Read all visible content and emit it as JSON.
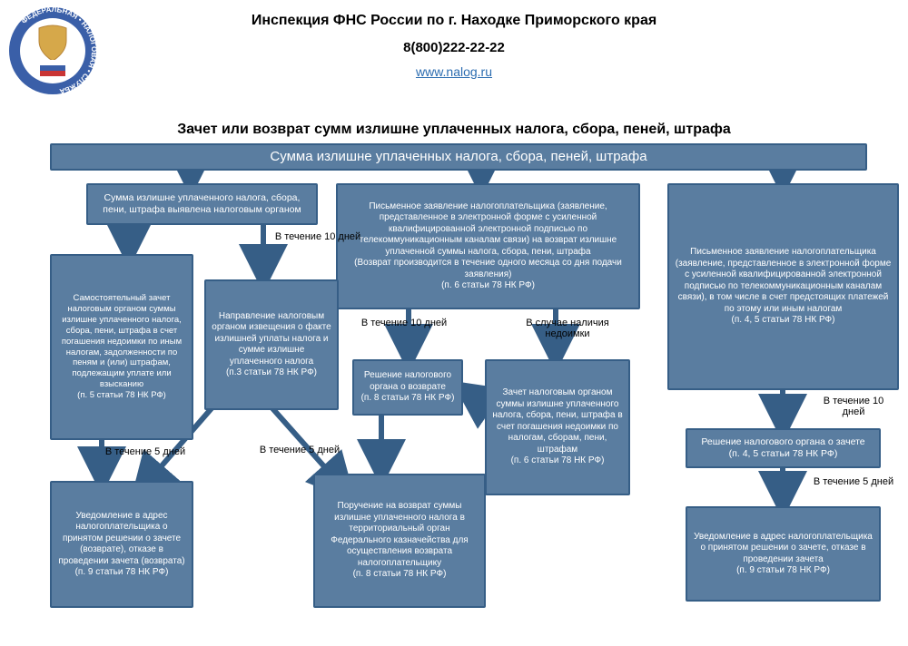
{
  "header": {
    "title": "Инспекция ФНС России по г. Находке Приморского края",
    "phone": "8(800)222-22-22",
    "link": "www.nalog.ru"
  },
  "subtitle": "Зачет или возврат сумм излишне уплаченных налога, сбора, пеней, штрафа",
  "style": {
    "box_fill": "#5a7da0",
    "box_border": "#365e86",
    "arrow": "#365e86",
    "text": "#ffffff",
    "label_color": "#000000",
    "logo_outer": "#3a5fa8",
    "logo_inner": "#ffffff",
    "logo_flag_blue": "#3a5fa8",
    "logo_flag_red": "#c93535",
    "bg": "#ffffff",
    "link_color": "#2b6cb0"
  },
  "labels": {
    "t10": "В течение 10 дней",
    "t5": "В течение 5 дней",
    "nedoimka": "В случае наличия недоимки"
  },
  "flow": {
    "top": "Сумма излишне уплаченных налога, сбора, пеней, штрафа",
    "a": "Сумма излишне уплаченного налога, сбора, пени, штрафа выявлена налоговым органом",
    "b": "Письменное заявление налогоплательщика (заявление, представленное в электронной форме с усиленной квалифицированной электронной подписью по телекоммуникационным каналам связи) на возврат излишне уплаченной суммы налога, сбора, пени, штрафа\n(Возврат производится в течение одного месяца со дня подачи заявления)\n(п. 6 статьи 78 НК РФ)",
    "c": "Письменное заявление налогоплательщика (заявление, представленное в электронной форме с усиленной квалифицированной электронной подписью по телекоммуникационным каналам связи), в том числе в счет предстоящих платежей по этому или иным налогам\n(п. 4, 5 статьи 78 НК РФ)",
    "a1": "Самостоятельный зачет налоговым органом суммы излишне уплаченного налога, сбора, пени, штрафа в счет погашения недоимки по иным налогам, задолженности по пеням и (или) штрафам, подлежащим уплате или взысканию\n(п. 5 статьи 78 НК РФ)",
    "a2": "Направление налоговым органом извещения о факте излишней уплаты налога и сумме излишне уплаченного налога\n(п.3 статьи 78 НК РФ)",
    "a3": "Уведомление в адрес налогоплательщика о принятом решении о зачете (возврате), отказе в проведении зачета (возврата)\n(п. 9 статьи 78 НК РФ)",
    "b1": "Решение налогового органа о возврате\n(п. 8 статьи 78 НК РФ)",
    "b2": "Зачет налоговым органом суммы излишне уплаченного налога, сбора, пени, штрафа в счет погашения недоимки по налогам, сборам, пени, штрафам\n(п. 6 статьи 78 НК РФ)",
    "b3": "Поручение на возврат суммы излишне уплаченного налога в территориальный орган Федерального казначейства для осуществления возврата налогоплательщику\n(п. 8 статьи 78 НК РФ)",
    "c1": "Решение налогового органа о зачете\n(п. 4, 5 статьи 78 НК РФ)",
    "c2": "Уведомление в адрес налогоплательщика о принятом решении о зачете, отказе в проведении зачета\n(п. 9 статьи 78 НК РФ)"
  }
}
